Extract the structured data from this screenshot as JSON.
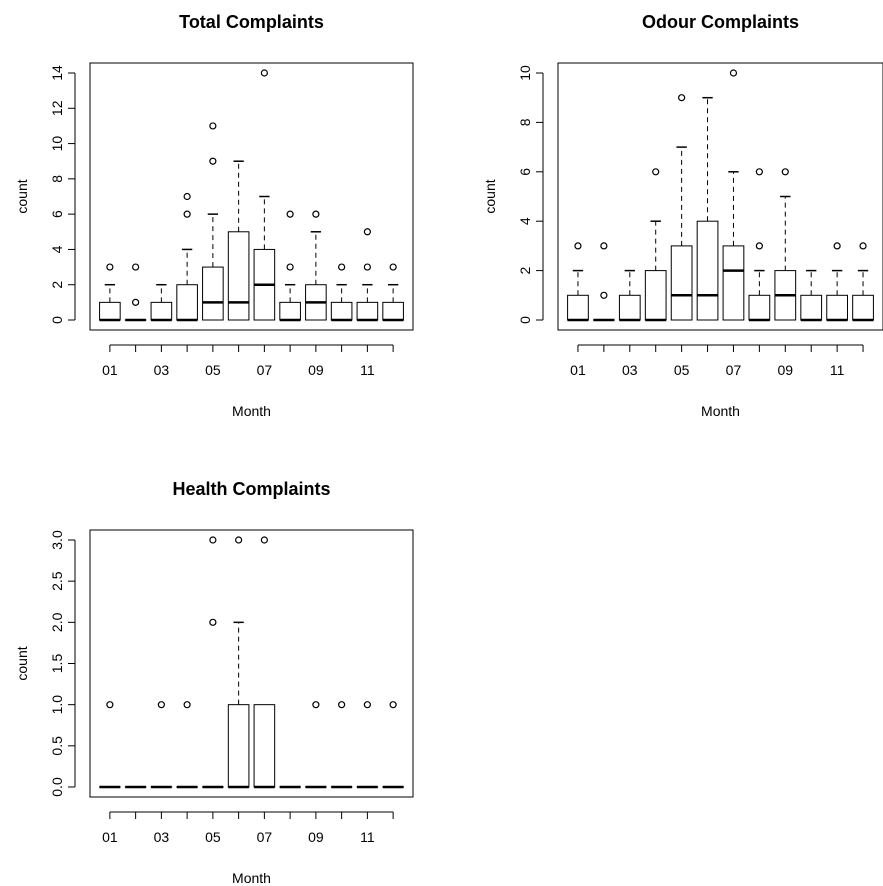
{
  "chart_data": [
    {
      "type": "boxplot",
      "title": "Total Complaints",
      "xlabel": "Month",
      "ylabel": "count",
      "ylim": [
        0,
        14
      ],
      "yticks": [
        0,
        2,
        4,
        6,
        8,
        10,
        12,
        14
      ],
      "categories": [
        "01",
        "02",
        "03",
        "04",
        "05",
        "06",
        "07",
        "08",
        "09",
        "10",
        "11",
        "12"
      ],
      "x_tick_labels_shown": [
        "01",
        "03",
        "05",
        "07",
        "09",
        "11"
      ],
      "boxes": [
        {
          "month": "01",
          "q1": 0,
          "median": 0,
          "q3": 1,
          "whisker_low": 0,
          "whisker_high": 2,
          "outliers": [
            3
          ]
        },
        {
          "month": "02",
          "q1": 0,
          "median": 0,
          "q3": 0,
          "whisker_low": 0,
          "whisker_high": 0,
          "outliers": [
            1,
            3
          ]
        },
        {
          "month": "03",
          "q1": 0,
          "median": 0,
          "q3": 1,
          "whisker_low": 0,
          "whisker_high": 2,
          "outliers": []
        },
        {
          "month": "04",
          "q1": 0,
          "median": 0,
          "q3": 2,
          "whisker_low": 0,
          "whisker_high": 4,
          "outliers": [
            6,
            7
          ]
        },
        {
          "month": "05",
          "q1": 0,
          "median": 1,
          "q3": 3,
          "whisker_low": 0,
          "whisker_high": 6,
          "outliers": [
            9,
            11
          ]
        },
        {
          "month": "06",
          "q1": 0,
          "median": 1,
          "q3": 5,
          "whisker_low": 0,
          "whisker_high": 9,
          "outliers": []
        },
        {
          "month": "07",
          "q1": 0,
          "median": 2,
          "q3": 4,
          "whisker_low": 0,
          "whisker_high": 7,
          "outliers": [
            14
          ]
        },
        {
          "month": "08",
          "q1": 0,
          "median": 0,
          "q3": 1,
          "whisker_low": 0,
          "whisker_high": 2,
          "outliers": [
            3,
            6
          ]
        },
        {
          "month": "09",
          "q1": 0,
          "median": 1,
          "q3": 2,
          "whisker_low": 0,
          "whisker_high": 5,
          "outliers": [
            6
          ]
        },
        {
          "month": "10",
          "q1": 0,
          "median": 0,
          "q3": 1,
          "whisker_low": 0,
          "whisker_high": 2,
          "outliers": [
            3
          ]
        },
        {
          "month": "11",
          "q1": 0,
          "median": 0,
          "q3": 1,
          "whisker_low": 0,
          "whisker_high": 2,
          "outliers": [
            3,
            5
          ]
        },
        {
          "month": "12",
          "q1": 0,
          "median": 0,
          "q3": 1,
          "whisker_low": 0,
          "whisker_high": 2,
          "outliers": [
            3
          ]
        }
      ]
    },
    {
      "type": "boxplot",
      "title": "Odour Complaints",
      "xlabel": "Month",
      "ylabel": "count",
      "ylim": [
        0,
        10
      ],
      "yticks": [
        0,
        2,
        4,
        6,
        8,
        10
      ],
      "categories": [
        "01",
        "02",
        "03",
        "04",
        "05",
        "06",
        "07",
        "08",
        "09",
        "10",
        "11",
        "12"
      ],
      "x_tick_labels_shown": [
        "01",
        "03",
        "05",
        "07",
        "09",
        "11"
      ],
      "boxes": [
        {
          "month": "01",
          "q1": 0,
          "median": 0,
          "q3": 1,
          "whisker_low": 0,
          "whisker_high": 2,
          "outliers": [
            3
          ]
        },
        {
          "month": "02",
          "q1": 0,
          "median": 0,
          "q3": 0,
          "whisker_low": 0,
          "whisker_high": 0,
          "outliers": [
            1,
            3
          ]
        },
        {
          "month": "03",
          "q1": 0,
          "median": 0,
          "q3": 1,
          "whisker_low": 0,
          "whisker_high": 2,
          "outliers": []
        },
        {
          "month": "04",
          "q1": 0,
          "median": 0,
          "q3": 2,
          "whisker_low": 0,
          "whisker_high": 4,
          "outliers": [
            6
          ]
        },
        {
          "month": "05",
          "q1": 0,
          "median": 1,
          "q3": 3,
          "whisker_low": 0,
          "whisker_high": 7,
          "outliers": [
            9
          ]
        },
        {
          "month": "06",
          "q1": 0,
          "median": 1,
          "q3": 4,
          "whisker_low": 0,
          "whisker_high": 9,
          "outliers": []
        },
        {
          "month": "07",
          "q1": 0,
          "median": 2,
          "q3": 3,
          "whisker_low": 0,
          "whisker_high": 6,
          "outliers": [
            10
          ]
        },
        {
          "month": "08",
          "q1": 0,
          "median": 0,
          "q3": 1,
          "whisker_low": 0,
          "whisker_high": 2,
          "outliers": [
            3,
            6
          ]
        },
        {
          "month": "09",
          "q1": 0,
          "median": 1,
          "q3": 2,
          "whisker_low": 0,
          "whisker_high": 5,
          "outliers": [
            6
          ]
        },
        {
          "month": "10",
          "q1": 0,
          "median": 0,
          "q3": 1,
          "whisker_low": 0,
          "whisker_high": 2,
          "outliers": []
        },
        {
          "month": "11",
          "q1": 0,
          "median": 0,
          "q3": 1,
          "whisker_low": 0,
          "whisker_high": 2,
          "outliers": [
            3
          ]
        },
        {
          "month": "12",
          "q1": 0,
          "median": 0,
          "q3": 1,
          "whisker_low": 0,
          "whisker_high": 2,
          "outliers": [
            3
          ]
        }
      ]
    },
    {
      "type": "boxplot",
      "title": "Health Complaints",
      "xlabel": "Month",
      "ylabel": "count",
      "ylim": [
        0,
        3
      ],
      "yticks": [
        0,
        0.5,
        1,
        1.5,
        2,
        2.5,
        3
      ],
      "ytick_labels": [
        "0.0",
        "0.5",
        "1.0",
        "1.5",
        "2.0",
        "2.5",
        "3.0"
      ],
      "categories": [
        "01",
        "02",
        "03",
        "04",
        "05",
        "06",
        "07",
        "08",
        "09",
        "10",
        "11",
        "12"
      ],
      "x_tick_labels_shown": [
        "01",
        "03",
        "05",
        "07",
        "09",
        "11"
      ],
      "boxes": [
        {
          "month": "01",
          "q1": 0,
          "median": 0,
          "q3": 0,
          "whisker_low": 0,
          "whisker_high": 0,
          "outliers": [
            1
          ]
        },
        {
          "month": "02",
          "q1": 0,
          "median": 0,
          "q3": 0,
          "whisker_low": 0,
          "whisker_high": 0,
          "outliers": []
        },
        {
          "month": "03",
          "q1": 0,
          "median": 0,
          "q3": 0,
          "whisker_low": 0,
          "whisker_high": 0,
          "outliers": [
            1
          ]
        },
        {
          "month": "04",
          "q1": 0,
          "median": 0,
          "q3": 0,
          "whisker_low": 0,
          "whisker_high": 0,
          "outliers": [
            1
          ]
        },
        {
          "month": "05",
          "q1": 0,
          "median": 0,
          "q3": 0,
          "whisker_low": 0,
          "whisker_high": 0,
          "outliers": [
            2,
            3
          ]
        },
        {
          "month": "06",
          "q1": 0,
          "median": 0,
          "q3": 1,
          "whisker_low": 0,
          "whisker_high": 2,
          "outliers": [
            3
          ]
        },
        {
          "month": "07",
          "q1": 0,
          "median": 0,
          "q3": 1,
          "whisker_low": 0,
          "whisker_high": 1,
          "outliers": [
            3
          ]
        },
        {
          "month": "08",
          "q1": 0,
          "median": 0,
          "q3": 0,
          "whisker_low": 0,
          "whisker_high": 0,
          "outliers": []
        },
        {
          "month": "09",
          "q1": 0,
          "median": 0,
          "q3": 0,
          "whisker_low": 0,
          "whisker_high": 0,
          "outliers": [
            1
          ]
        },
        {
          "month": "10",
          "q1": 0,
          "median": 0,
          "q3": 0,
          "whisker_low": 0,
          "whisker_high": 0,
          "outliers": [
            1
          ]
        },
        {
          "month": "11",
          "q1": 0,
          "median": 0,
          "q3": 0,
          "whisker_low": 0,
          "whisker_high": 0,
          "outliers": [
            1
          ]
        },
        {
          "month": "12",
          "q1": 0,
          "median": 0,
          "q3": 0,
          "whisker_low": 0,
          "whisker_high": 0,
          "outliers": [
            1
          ]
        }
      ]
    }
  ]
}
